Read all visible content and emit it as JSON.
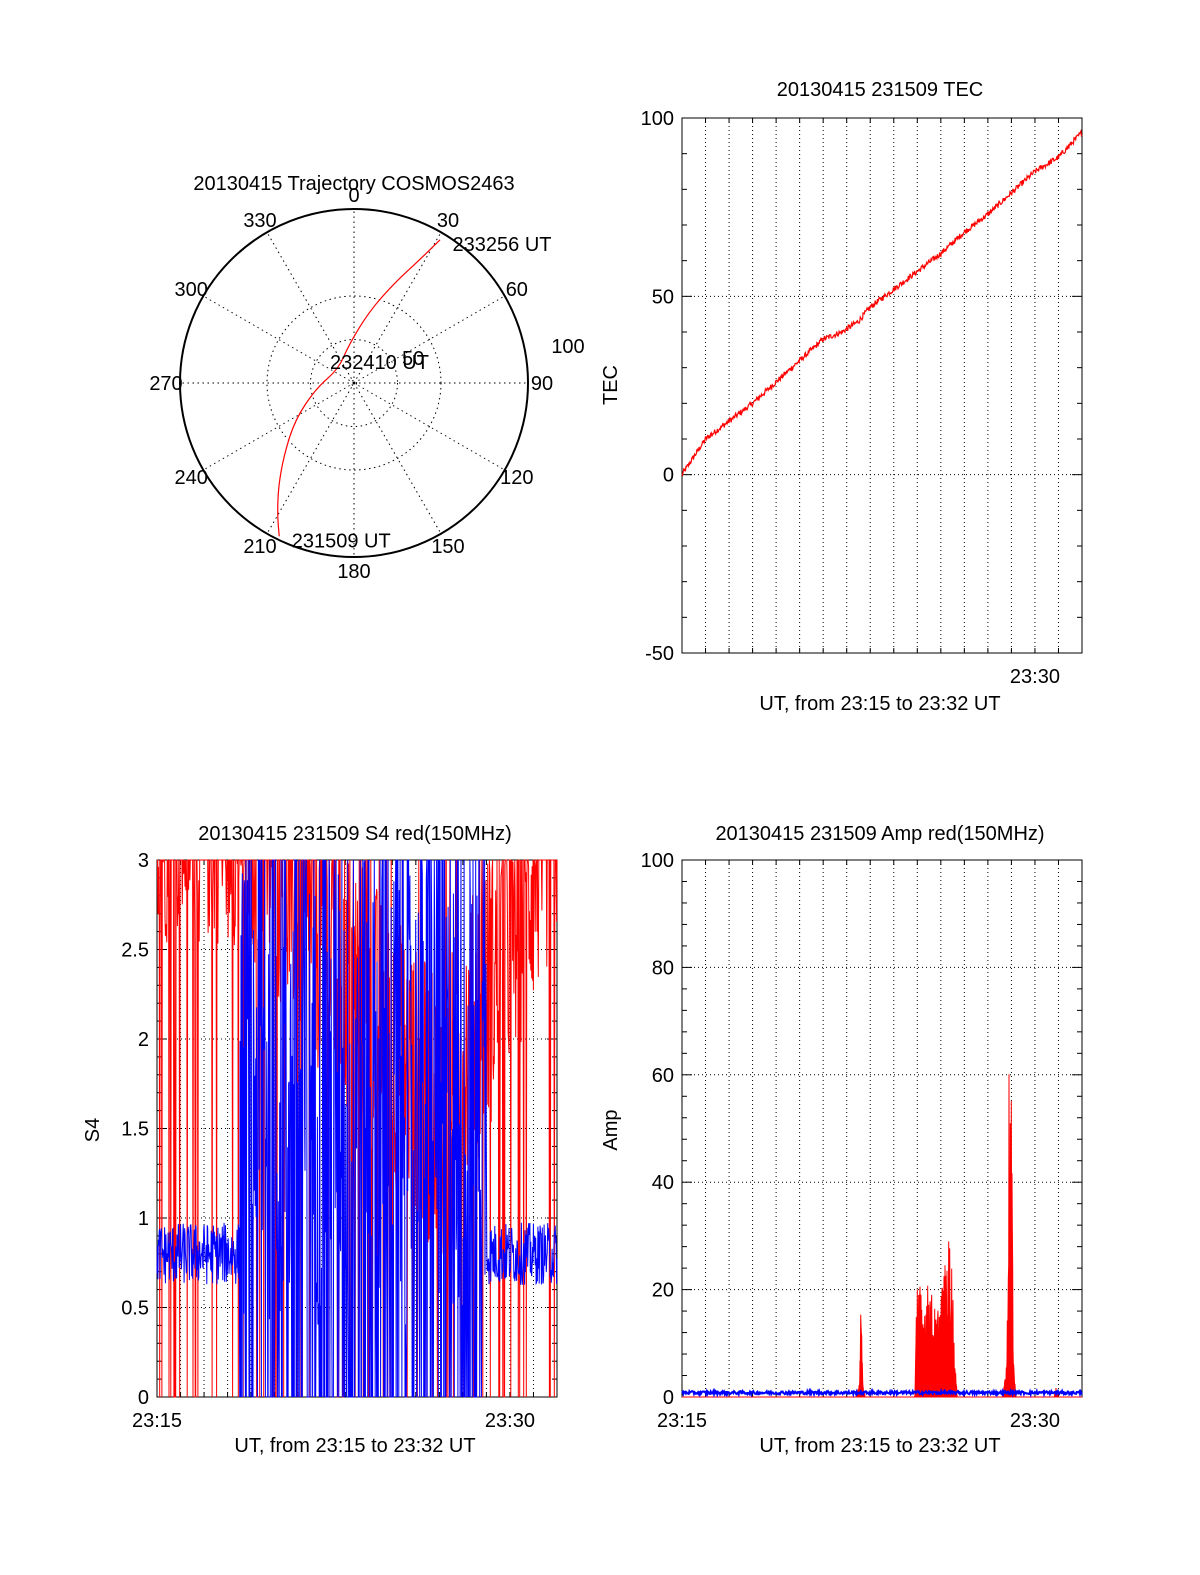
{
  "chart_data": [
    {
      "type": "polar",
      "title": "20130415 Trajectory COSMOS2463",
      "azimuth_labels": [
        "0",
        "30",
        "60",
        "90",
        "120",
        "150",
        "180",
        "210",
        "240",
        "270",
        "300",
        "330"
      ],
      "radial_labels": [
        "50",
        "100"
      ],
      "series": [
        {
          "name": "",
          "color": "#ff0000",
          "points": [
            {
              "az": 206,
              "r": 98
            },
            {
              "az": 210,
              "r": 88
            },
            {
              "az": 216,
              "r": 74
            },
            {
              "az": 224,
              "r": 58
            },
            {
              "az": 238,
              "r": 40
            },
            {
              "az": 262,
              "r": 22
            },
            {
              "az": 312,
              "r": 12
            },
            {
              "az": 352,
              "r": 22
            },
            {
              "az": 12,
              "r": 42
            },
            {
              "az": 22,
              "r": 62
            },
            {
              "az": 28,
              "r": 80
            },
            {
              "az": 31,
              "r": 96
            }
          ]
        }
      ],
      "annotations": [
        {
          "text": "233256 UT",
          "az": 31,
          "r": 96
        },
        {
          "text": "232410 UT",
          "az": 90,
          "r": 2
        },
        {
          "text": "231509 UT",
          "az": 206,
          "r": 98
        }
      ]
    },
    {
      "type": "line",
      "title": "20130415 231509 TEC",
      "xlabel": "UT, from 23:15 to 23:32 UT",
      "ylabel": "TEC",
      "xlim": [
        0,
        17
      ],
      "ylim": [
        -50,
        100
      ],
      "yticks": [
        "-50",
        "0",
        "50",
        "100"
      ],
      "xticks": [
        {
          "at": 15,
          "label": "23:30"
        }
      ],
      "grid": true,
      "series": [
        {
          "name": "",
          "color": "#ff0000",
          "x": [
            0,
            1,
            2,
            3,
            4,
            5,
            6,
            6.8,
            7.5,
            8,
            9,
            10,
            11,
            12,
            13,
            14,
            15,
            16,
            17
          ],
          "y": [
            0,
            10,
            15,
            20,
            26,
            32,
            38,
            40,
            43,
            47,
            52,
            57,
            62,
            68,
            73,
            79,
            85,
            89,
            96
          ]
        }
      ]
    },
    {
      "type": "line",
      "title": "20130415 231509 S4 red(150MHz)",
      "xlabel": "UT, from 23:15 to 23:32 UT",
      "ylabel": "S4",
      "xlim": [
        0,
        17
      ],
      "ylim": [
        0,
        3
      ],
      "yticks": [
        "0",
        "0.5",
        "1",
        "1.5",
        "2",
        "2.5",
        "3"
      ],
      "xticks": [
        {
          "at": 0,
          "label": "23:15"
        },
        {
          "at": 15,
          "label": "23:30"
        }
      ],
      "grid": true,
      "series": [
        {
          "name": "",
          "color": "#ff0000",
          "style": "noisy",
          "x": [
            0,
            3.5,
            12,
            17
          ],
          "y": [
            3,
            3,
            1.2,
            3
          ]
        },
        {
          "name": "",
          "color": "#0000ff",
          "style": "noisy",
          "x": [
            0,
            3.5,
            14,
            17
          ],
          "y": [
            0.8,
            0.8,
            0.85,
            0.85
          ]
        }
      ]
    },
    {
      "type": "area",
      "title": "20130415 231509 Amp red(150MHz)",
      "xlabel": "UT, from 23:15 to 23:32 UT",
      "ylabel": "Amp",
      "xlim": [
        0,
        17
      ],
      "ylim": [
        0,
        100
      ],
      "yticks": [
        "0",
        "20",
        "40",
        "60",
        "80",
        "100"
      ],
      "xticks": [
        {
          "at": 0,
          "label": "23:15"
        },
        {
          "at": 15,
          "label": "23:30"
        }
      ],
      "grid": true,
      "series": [
        {
          "name": "",
          "color": "#ff0000",
          "x": [
            0,
            7.4,
            7.55,
            7.6,
            7.7,
            7.8,
            9.9,
            10.0,
            10.2,
            10.5,
            10.8,
            11.0,
            11.2,
            11.4,
            11.5,
            11.6,
            11.7,
            13.6,
            13.8,
            13.9,
            14.0,
            14.1,
            14.2,
            15.8,
            15.9,
            16.0,
            17
          ],
          "y": [
            0,
            0,
            3,
            18,
            2,
            0,
            0,
            24,
            16,
            20,
            14,
            18,
            23,
            29,
            20,
            6,
            0,
            0,
            6,
            58,
            50,
            6,
            0,
            0,
            2,
            0,
            0
          ]
        },
        {
          "name": "",
          "color": "#0000ff",
          "x": [
            0,
            17
          ],
          "y": [
            0.8,
            0.8
          ]
        }
      ]
    }
  ]
}
